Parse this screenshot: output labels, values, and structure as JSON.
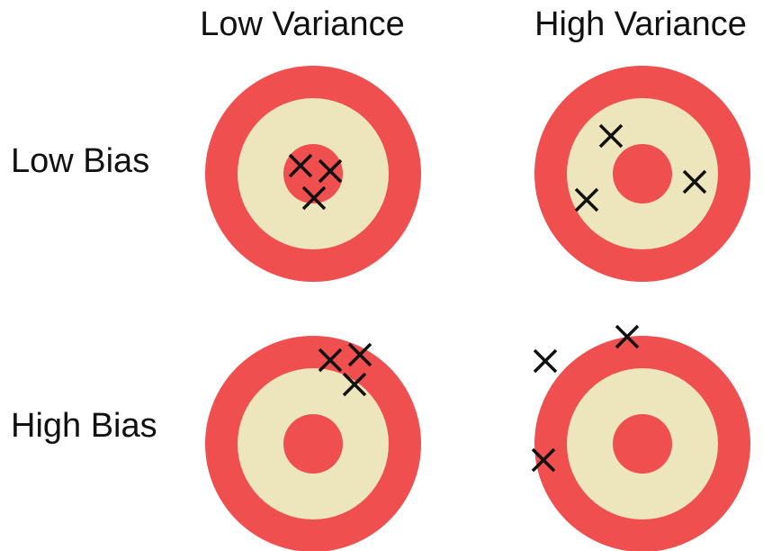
{
  "columns": [
    "Low Variance",
    "High Variance"
  ],
  "rows": [
    "Low Bias",
    "High Bias"
  ],
  "colors": {
    "outer_ring": "#ef4f4e",
    "middle_ring": "#ede6bc",
    "bullseye": "#ef4f4e",
    "mark": "#111111"
  },
  "targets": [
    {
      "name": "low-bias-low-variance",
      "row": 0,
      "col": 0,
      "marks": 3
    },
    {
      "name": "low-bias-high-variance",
      "row": 0,
      "col": 1,
      "marks": 3
    },
    {
      "name": "high-bias-low-variance",
      "row": 1,
      "col": 0,
      "marks": 3
    },
    {
      "name": "high-bias-high-variance",
      "row": 1,
      "col": 1,
      "marks": 3
    }
  ]
}
